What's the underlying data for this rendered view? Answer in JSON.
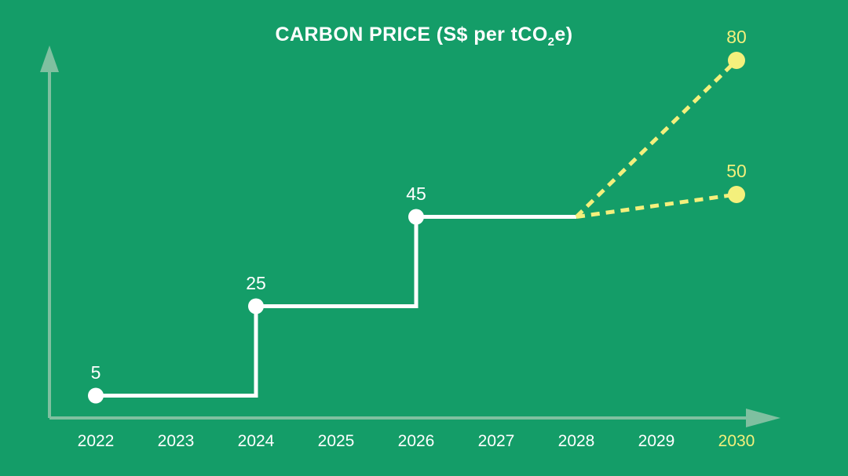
{
  "title": {
    "prefix": "CARBON PRICE (S$ per tCO",
    "subscript": "2",
    "suffix": "e)"
  },
  "chart_data": {
    "type": "line",
    "style": "step",
    "title": "CARBON PRICE (S$ per tCO2e)",
    "xlabel": "",
    "ylabel": "",
    "categories": [
      "2022",
      "2023",
      "2024",
      "2025",
      "2026",
      "2027",
      "2028",
      "2029",
      "2030"
    ],
    "highlight_category": "2030",
    "ylim": [
      0,
      85
    ],
    "grid": false,
    "legend": "none",
    "step_points": [
      {
        "x": "2022",
        "y": 5,
        "label": "5"
      },
      {
        "x": "2024",
        "y": 25,
        "label": "25"
      },
      {
        "x": "2026",
        "y": 45,
        "label": "45"
      }
    ],
    "step_end_x": "2028",
    "projections": [
      {
        "from": {
          "x": "2028",
          "y": 45
        },
        "to": {
          "x": "2030",
          "y": 80
        },
        "label": "80"
      },
      {
        "from": {
          "x": "2028",
          "y": 45
        },
        "to": {
          "x": "2030",
          "y": 50
        },
        "label": "50"
      }
    ],
    "colors": {
      "background": "#149D68",
      "line": "#FFFFFF",
      "marker": "#FFFFFF",
      "projection": "#F4F07C",
      "axis": "#7FC0A0",
      "highlight": "#F4F07C",
      "text": "#FFFFFF"
    }
  }
}
